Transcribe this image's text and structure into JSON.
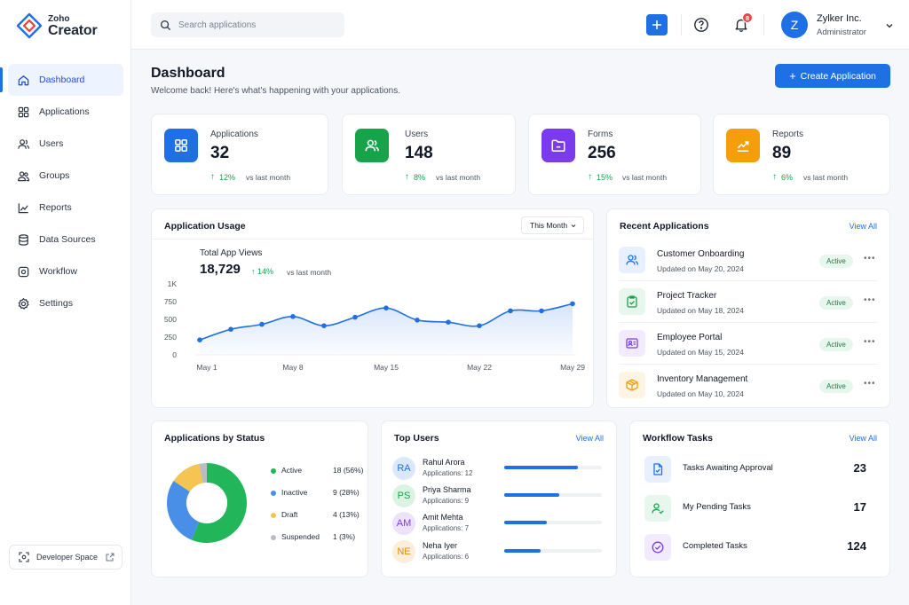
{
  "brand": {
    "line1": "Zoho",
    "line2": "Creator"
  },
  "nav": [
    {
      "label": "Dashboard",
      "icon": "home-icon",
      "active": true
    },
    {
      "label": "Applications",
      "icon": "grid-icon"
    },
    {
      "label": "Users",
      "icon": "users-icon"
    },
    {
      "label": "Groups",
      "icon": "groups-icon"
    },
    {
      "label": "Reports",
      "icon": "chart-icon"
    },
    {
      "label": "Data Sources",
      "icon": "database-icon"
    },
    {
      "label": "Workflow",
      "icon": "workflow-icon"
    },
    {
      "label": "Settings",
      "icon": "gear-icon"
    }
  ],
  "developer_space": {
    "label": "Developer Space"
  },
  "search": {
    "placeholder": "Search applications"
  },
  "notifications": {
    "count": "8"
  },
  "user": {
    "initial": "Z",
    "name": "Zylker Inc.",
    "role": "Administrator"
  },
  "page": {
    "title": "Dashboard",
    "subtitle": "Welcome back! Here's what's happening with your applications.",
    "create_label": "Create Application"
  },
  "stats": [
    {
      "label": "Applications",
      "value": "32",
      "trend": "12%",
      "vs": "vs last month",
      "color": "#1f6fe5",
      "icon": "grid-icon"
    },
    {
      "label": "Users",
      "value": "148",
      "trend": "8%",
      "vs": "vs last month",
      "color": "#16a34a",
      "icon": "users-icon"
    },
    {
      "label": "Forms",
      "value": "256",
      "trend": "15%",
      "vs": "vs last month",
      "color": "#7c3aed",
      "icon": "folder-icon"
    },
    {
      "label": "Reports",
      "value": "89",
      "trend": "6%",
      "vs": "vs last month",
      "color": "#f59e0b",
      "icon": "trend-icon"
    }
  ],
  "usage": {
    "title": "Application Usage",
    "range": "This Month",
    "metric_label": "Total App Views",
    "metric_value": "18,729",
    "trend": "14%",
    "vs": "vs last month"
  },
  "chart_data": {
    "type": "area",
    "y_ticks": [
      "1K",
      "750",
      "500",
      "250",
      "0"
    ],
    "ylim": [
      0,
      1000
    ],
    "x_ticks": [
      "May 1",
      "May 8",
      "May 15",
      "May 22",
      "May 29"
    ],
    "x": [
      1,
      4,
      7,
      10,
      13,
      16,
      19,
      22,
      25,
      28,
      31,
      34,
      37
    ],
    "values": [
      210,
      360,
      430,
      540,
      410,
      530,
      660,
      490,
      460,
      410,
      620,
      620,
      720
    ],
    "color": "#1f6fe5"
  },
  "recent": {
    "title": "Recent Applications",
    "view_all": "View All",
    "items": [
      {
        "name": "Customer Onboarding",
        "date": "Updated on May 20, 2024",
        "status": "Active",
        "color": "#1f6fe5",
        "bg": "#e8f0fe"
      },
      {
        "name": "Project Tracker",
        "date": "Updated on May 18, 2024",
        "status": "Active",
        "color": "#16a34a",
        "bg": "#e8f7ee"
      },
      {
        "name": "Employee Portal",
        "date": "Updated on May 15, 2024",
        "status": "Active",
        "color": "#7c3aed",
        "bg": "#f1ebfd"
      },
      {
        "name": "Inventory Management",
        "date": "Updated on May 10, 2024",
        "status": "Active",
        "color": "#f59e0b",
        "bg": "#fef4e4"
      }
    ]
  },
  "status_chart": {
    "title": "Applications by Status",
    "items": [
      {
        "label": "Active",
        "count": "18 (56%)",
        "value": 18,
        "color": "#22b55a"
      },
      {
        "label": "Inactive",
        "count": "9 (28%)",
        "value": 9,
        "color": "#4a8fe7"
      },
      {
        "label": "Draft",
        "count": "4 (13%)",
        "value": 4,
        "color": "#f5c451"
      },
      {
        "label": "Suspended",
        "count": "1 (3%)",
        "value": 1,
        "color": "#b8bcc4"
      }
    ]
  },
  "top_users": {
    "title": "Top Users",
    "view_all": "View All",
    "items": [
      {
        "initials": "RA",
        "name": "Rahul Arora",
        "apps": "Applications: 12",
        "value": 12,
        "bg": "#dbe8fb",
        "fg": "#1f6fe5"
      },
      {
        "initials": "PS",
        "name": "Priya Sharma",
        "apps": "Applications: 9",
        "value": 9,
        "bg": "#dcf3e4",
        "fg": "#16a34a"
      },
      {
        "initials": "AM",
        "name": "Amit Mehta",
        "apps": "Applications: 7",
        "value": 7,
        "bg": "#ece2fb",
        "fg": "#7c3aed"
      },
      {
        "initials": "NE",
        "name": "Neha Iyer",
        "apps": "Applications: 6",
        "value": 6,
        "bg": "#fdeedb",
        "fg": "#e08a0b"
      }
    ]
  },
  "tasks": {
    "title": "Workflow Tasks",
    "view_all": "View All",
    "items": [
      {
        "label": "Tasks Awaiting Approval",
        "value": "23",
        "color": "#1f6fe5",
        "bg": "#e8f0fe"
      },
      {
        "label": "My Pending Tasks",
        "value": "17",
        "color": "#16a34a",
        "bg": "#e8f7ee"
      },
      {
        "label": "Completed Tasks",
        "value": "124",
        "color": "#7c3aed",
        "bg": "#f1ebfd"
      }
    ]
  }
}
